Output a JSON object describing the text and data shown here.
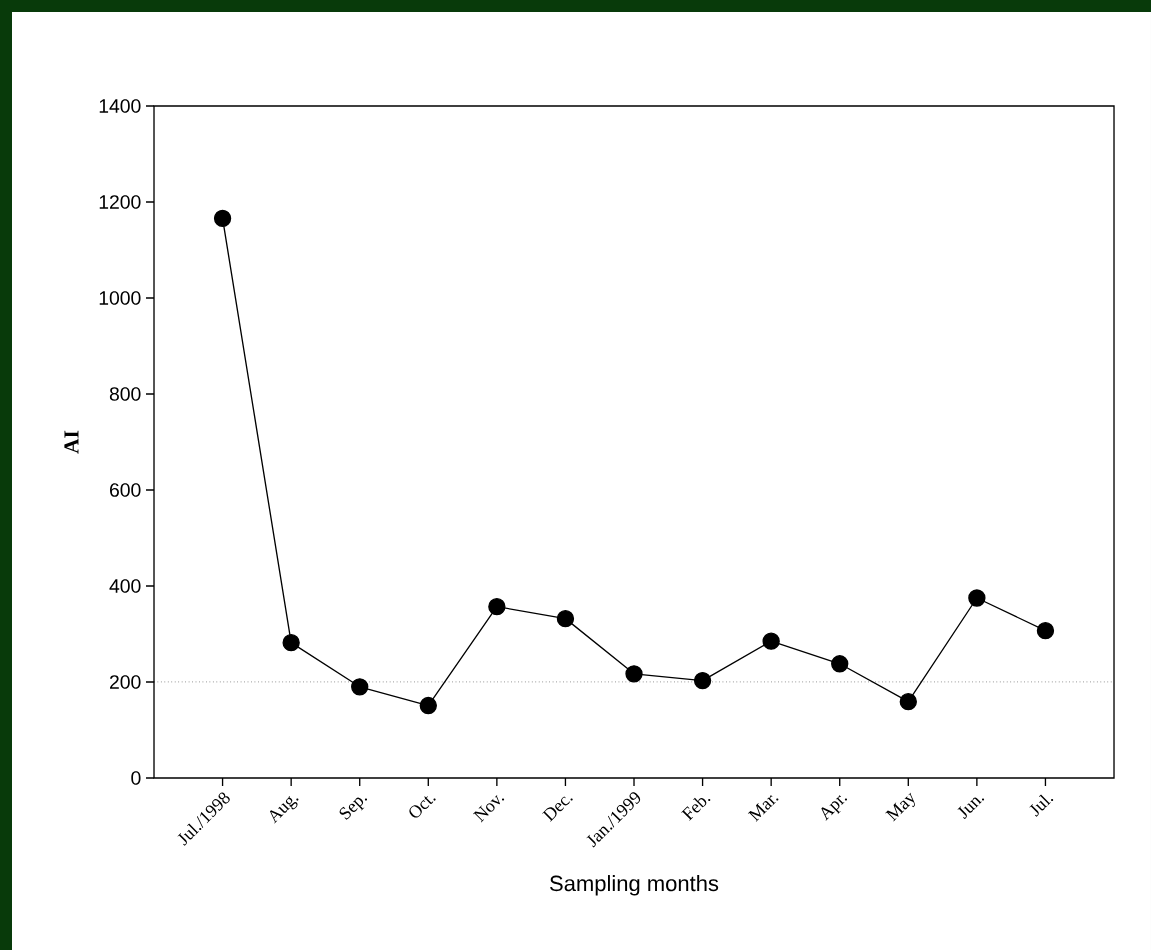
{
  "chart_data": {
    "type": "line",
    "xlabel": "Sampling months",
    "ylabel": "AI",
    "categories": [
      "Jul./1998",
      "Aug.",
      "Sep.",
      "Oct.",
      "Nov.",
      "Dec.",
      "Jan./1999",
      "Feb.",
      "Mar.",
      "Apr.",
      "May",
      "Jun.",
      "Jul."
    ],
    "values": [
      1166,
      282,
      190,
      151,
      357,
      332,
      217,
      203,
      285,
      238,
      159,
      375,
      307
    ],
    "color": "#000000",
    "marker": "circle",
    "line_style": "solid",
    "ylim": [
      0,
      1400
    ],
    "yticks": [
      0,
      200,
      400,
      600,
      800,
      1000,
      1200,
      1400
    ],
    "ref_lines": [
      {
        "axis": "y",
        "value": 200,
        "line_style": "dotted",
        "color": "#000000"
      }
    ]
  }
}
